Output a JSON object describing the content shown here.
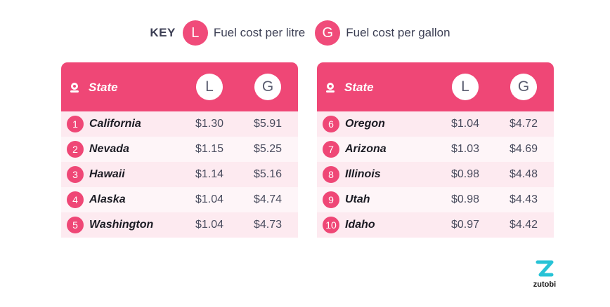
{
  "key": {
    "title": "KEY",
    "l_badge": "L",
    "l_label": "Fuel cost per litre",
    "g_badge": "G",
    "g_label": "Fuel cost per gallon"
  },
  "header": {
    "state": "State",
    "l_badge": "L",
    "g_badge": "G"
  },
  "tables": [
    {
      "rows": [
        {
          "rank": "1",
          "state": "California",
          "litre": "$1.30",
          "gallon": "$5.91"
        },
        {
          "rank": "2",
          "state": "Nevada",
          "litre": "$1.15",
          "gallon": "$5.25"
        },
        {
          "rank": "3",
          "state": "Hawaii",
          "litre": "$1.14",
          "gallon": "$5.16"
        },
        {
          "rank": "4",
          "state": "Alaska",
          "litre": "$1.04",
          "gallon": "$4.74"
        },
        {
          "rank": "5",
          "state": "Washington",
          "litre": "$1.04",
          "gallon": "$4.73"
        }
      ]
    },
    {
      "rows": [
        {
          "rank": "6",
          "state": "Oregon",
          "litre": "$1.04",
          "gallon": "$4.72"
        },
        {
          "rank": "7",
          "state": "Arizona",
          "litre": "$1.03",
          "gallon": "$4.69"
        },
        {
          "rank": "8",
          "state": "Illinois",
          "litre": "$0.98",
          "gallon": "$4.48"
        },
        {
          "rank": "9",
          "state": "Utah",
          "litre": "$0.98",
          "gallon": "$4.43"
        },
        {
          "rank": "10",
          "state": "Idaho",
          "litre": "$0.97",
          "gallon": "$4.42"
        }
      ]
    }
  ],
  "logo": {
    "text": "zutobi"
  },
  "colors": {
    "accent": "#ef4776",
    "row_odd": "#fdeaf0",
    "row_even": "#fef5f8",
    "logo_teal": "#27c3d6"
  },
  "icons": {
    "header_icon": "location-pin-icon"
  }
}
